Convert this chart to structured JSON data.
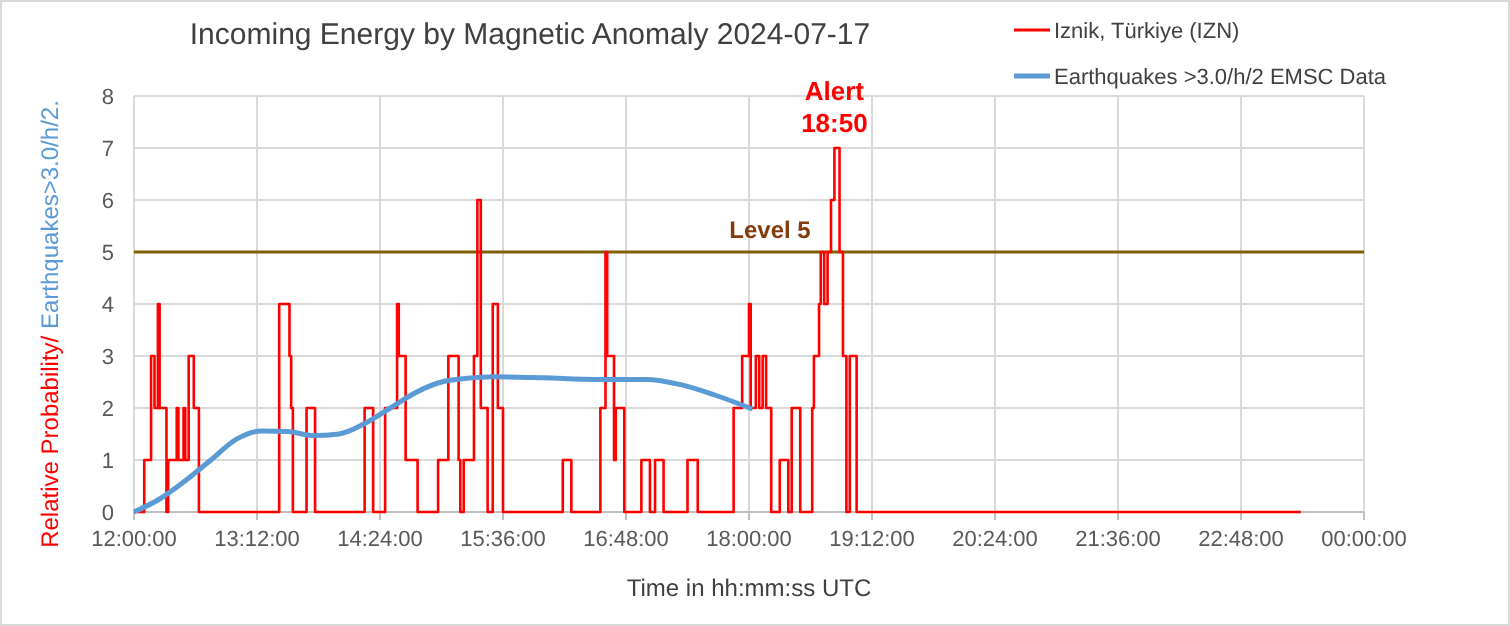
{
  "chart_data": {
    "type": "step",
    "title": "Incoming Energy by Magnetic Anomaly 2024-07-17",
    "xlabel": "Time in hh:mm:ss UTC",
    "ylabel": "Relative Probability/ Earthquakes>3.0/h/2.",
    "xlim": [
      "2024-07-17T12:00",
      "2024-07-18T00:00"
    ],
    "xticks": [
      {
        "value": "2024-07-17T12:00",
        "label": "12:00:00"
      },
      {
        "value": "2024-07-17T13:12",
        "label": "13:12:00"
      },
      {
        "value": "2024-07-17T14:24",
        "label": "14:24:00"
      },
      {
        "value": "2024-07-17T15:36",
        "label": "15:36:00"
      },
      {
        "value": "2024-07-17T16:48",
        "label": "16:48:00"
      },
      {
        "value": "2024-07-17T18:00",
        "label": "18:00:00"
      },
      {
        "value": "2024-07-17T19:12",
        "label": "19:12:00"
      },
      {
        "value": "2024-07-17T20:24",
        "label": "20:24:00"
      },
      {
        "value": "2024-07-17T21:36",
        "label": "21:36:00"
      },
      {
        "value": "2024-07-17T22:48",
        "label": "22:48:00"
      },
      {
        "value": "2024-07-18T00:00",
        "label": "00:00:00"
      }
    ],
    "ylim": [
      0,
      8
    ],
    "yticks": [
      0,
      1,
      2,
      3,
      4,
      5,
      6,
      7,
      8
    ],
    "grid": true,
    "legend": "top right",
    "series": [
      {
        "name": "Iznik, Türkiye (IZN)",
        "type": "step",
        "color": "#ff0000",
        "x": [
          "2024-07-17T12:00",
          "2024-07-17T12:06",
          "2024-07-17T12:10",
          "2024-07-17T12:12",
          "2024-07-17T12:14",
          "2024-07-17T12:15",
          "2024-07-17T12:19",
          "2024-07-17T12:20",
          "2024-07-17T12:25",
          "2024-07-17T12:26",
          "2024-07-17T12:29",
          "2024-07-17T12:30",
          "2024-07-17T12:32",
          "2024-07-17T12:35",
          "2024-07-17T12:38",
          "2024-07-17T13:25",
          "2024-07-17T13:31",
          "2024-07-17T13:32",
          "2024-07-17T13:33",
          "2024-07-17T13:41",
          "2024-07-17T13:46",
          "2024-07-17T14:15",
          "2024-07-17T14:20",
          "2024-07-17T14:27",
          "2024-07-17T14:34",
          "2024-07-17T14:35",
          "2024-07-17T14:39",
          "2024-07-17T14:46",
          "2024-07-17T14:58",
          "2024-07-17T15:04",
          "2024-07-17T15:10",
          "2024-07-17T15:11",
          "2024-07-17T15:13",
          "2024-07-17T15:19",
          "2024-07-17T15:21",
          "2024-07-17T15:23",
          "2024-07-17T15:27",
          "2024-07-17T15:30",
          "2024-07-17T15:33",
          "2024-07-17T15:36",
          "2024-07-17T16:11",
          "2024-07-17T16:16",
          "2024-07-17T16:33",
          "2024-07-17T16:36",
          "2024-07-17T16:37",
          "2024-07-17T16:41",
          "2024-07-17T16:42",
          "2024-07-17T16:47",
          "2024-07-17T16:57",
          "2024-07-17T17:02",
          "2024-07-17T17:05",
          "2024-07-17T17:10",
          "2024-07-17T17:24",
          "2024-07-17T17:30",
          "2024-07-17T17:51",
          "2024-07-17T17:56",
          "2024-07-17T18:00",
          "2024-07-17T18:01",
          "2024-07-17T18:04",
          "2024-07-17T18:06",
          "2024-07-17T18:08",
          "2024-07-17T18:10",
          "2024-07-17T18:13",
          "2024-07-17T18:18",
          "2024-07-17T18:23",
          "2024-07-17T18:25",
          "2024-07-17T18:30",
          "2024-07-17T18:37",
          "2024-07-17T18:38",
          "2024-07-17T18:41",
          "2024-07-17T18:42",
          "2024-07-17T18:44",
          "2024-07-17T18:46",
          "2024-07-17T18:48",
          "2024-07-17T18:50",
          "2024-07-17T18:53",
          "2024-07-17T18:55",
          "2024-07-17T18:57",
          "2024-07-17T18:59",
          "2024-07-17T19:03",
          "2024-07-17T23:23"
        ],
        "values": [
          0,
          1,
          3,
          2,
          4,
          2,
          0,
          1,
          2,
          1,
          2,
          1,
          3,
          2,
          0,
          4,
          3,
          2,
          0,
          2,
          0,
          2,
          0,
          2,
          4,
          3,
          1,
          0,
          1,
          3,
          1,
          0,
          1,
          3,
          6,
          2,
          0,
          4,
          2,
          0,
          1,
          0,
          2,
          5,
          3,
          1,
          2,
          0,
          1,
          0,
          1,
          0,
          1,
          0,
          2,
          3,
          4,
          2,
          3,
          2,
          3,
          2,
          0,
          1,
          0,
          2,
          0,
          2,
          3,
          4,
          5,
          4,
          5,
          6,
          7,
          5,
          3,
          0,
          3,
          0,
          0
        ]
      },
      {
        "name": "Earthquakes >3.0/h/2 EMSC Data",
        "type": "line",
        "color": "#5b9bd5",
        "x": [
          "2024-07-17T12:00",
          "2024-07-17T12:15",
          "2024-07-17T12:30",
          "2024-07-17T12:45",
          "2024-07-17T13:00",
          "2024-07-17T13:15",
          "2024-07-17T13:30",
          "2024-07-17T13:45",
          "2024-07-17T14:00",
          "2024-07-17T14:15",
          "2024-07-17T14:30",
          "2024-07-17T14:45",
          "2024-07-17T15:00",
          "2024-07-17T15:15",
          "2024-07-17T15:30",
          "2024-07-17T16:00",
          "2024-07-17T16:30",
          "2024-07-17T17:00",
          "2024-07-17T17:20",
          "2024-07-17T17:40",
          "2024-07-17T18:02"
        ],
        "values": [
          0,
          0.25,
          0.6,
          1,
          1.4,
          1.56,
          1.55,
          1.47,
          1.5,
          1.7,
          2,
          2.3,
          2.5,
          2.57,
          2.6,
          2.58,
          2.55,
          2.55,
          2.45,
          2.25,
          1.98
        ]
      }
    ],
    "ref_lines": [
      {
        "axis": "y",
        "value": 5,
        "label": "Level 5",
        "color": "#7f6000"
      }
    ],
    "annotations": [
      {
        "text": "Alert 18:50",
        "x": "2024-07-17T18:50",
        "y": 7
      }
    ]
  }
}
